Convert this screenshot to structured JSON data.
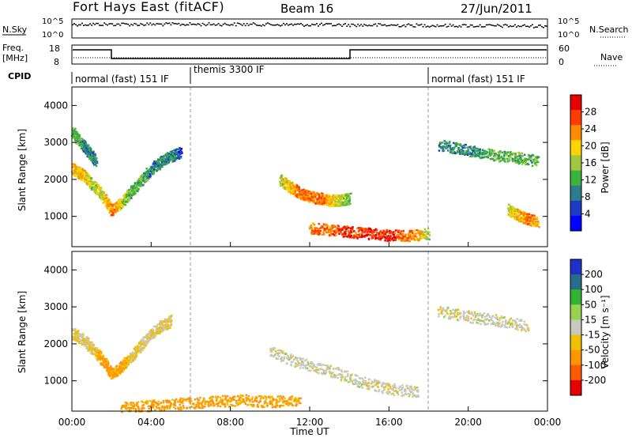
{
  "header": {
    "title": "Fort Hays East (fitACF)",
    "beam": "Beam 16",
    "date": "27/Jun/2011"
  },
  "summary_panels": {
    "nsky_label": "N.Sky",
    "nsearch_label": "N.Search",
    "noise_ticks_top": "10^5",
    "noise_ticks_bottom": "10^0",
    "freq_label_1": "Freq.",
    "freq_label_2": "[MHz]",
    "freq_ticks": [
      "18",
      "8"
    ],
    "nave_ticks": [
      "60",
      "0"
    ],
    "nave_label": "Nave",
    "cpid_label": "CPID",
    "cpid_segments": [
      {
        "label": "normal (fast) 151 IF",
        "start_h": 0,
        "end_h": 6
      },
      {
        "label": "themis 3300 IF",
        "start_h": 6,
        "end_h": 18
      },
      {
        "label": "normal (fast) 151 IF",
        "start_h": 18,
        "end_h": 24
      }
    ]
  },
  "chart_data": [
    {
      "type": "heatmap",
      "panel": "power",
      "ylabel": "Slant Range [km]",
      "xlim": [
        0,
        24
      ],
      "ylim": [
        180,
        4500
      ],
      "yticks": [
        "1000",
        "2000",
        "3000",
        "4000"
      ],
      "colorbar_label": "Power [dB]",
      "colorbar_ticks": [
        "28",
        "24",
        "20",
        "16",
        "12",
        "8",
        "4"
      ],
      "colors": [
        "#0000ff",
        "#1e3cc8",
        "#2d7d8c",
        "#3cb43c",
        "#a0c83c",
        "#ffd200",
        "#ff8c00",
        "#ff3c00",
        "#e60000"
      ],
      "series": [
        {
          "x": [
            0.0,
            0.5,
            1.0,
            1.5,
            2.0,
            2.5,
            3.0,
            3.5,
            4.0,
            4.5,
            5.0,
            5.5
          ],
          "y": [
            2300,
            2150,
            1900,
            1600,
            1200,
            1400,
            1700,
            2000,
            2300,
            2500,
            2650,
            2750
          ],
          "values": [
            20,
            20,
            16,
            16,
            24,
            16,
            12,
            12,
            8,
            8,
            8,
            4
          ]
        },
        {
          "x": [
            0.0,
            0.3,
            0.6,
            0.9,
            1.2
          ],
          "y": [
            3300,
            3100,
            2900,
            2700,
            2500
          ],
          "values": [
            12,
            12,
            8,
            8,
            8
          ]
        },
        {
          "x": [
            10.5,
            11.0,
            11.5,
            12.0,
            12.5,
            13.0,
            13.5,
            14.0
          ],
          "y": [
            2000,
            1800,
            1650,
            1550,
            1500,
            1450,
            1450,
            1500
          ],
          "values": [
            16,
            20,
            24,
            24,
            24,
            20,
            16,
            12
          ]
        },
        {
          "x": [
            12.0,
            13.0,
            14.0,
            15.0,
            16.0,
            17.0,
            18.0
          ],
          "y": [
            700,
            650,
            600,
            550,
            500,
            500,
            550
          ],
          "values": [
            24,
            24,
            28,
            28,
            28,
            24,
            16
          ]
        },
        {
          "x": [
            18.5,
            19.5,
            20.5,
            21.5,
            22.5,
            23.5
          ],
          "y": [
            2950,
            2850,
            2750,
            2650,
            2600,
            2500
          ],
          "values": [
            8,
            8,
            8,
            12,
            12,
            12
          ]
        },
        {
          "x": [
            22.0,
            22.5,
            23.0,
            23.5
          ],
          "y": [
            1200,
            1050,
            950,
            850
          ],
          "values": [
            16,
            20,
            24,
            20
          ]
        }
      ]
    },
    {
      "type": "heatmap",
      "panel": "velocity",
      "ylabel": "Slant Range [km]",
      "xlabel": "Time UT",
      "xlim": [
        0,
        24
      ],
      "ylim": [
        180,
        4500
      ],
      "xticks": [
        "00:00",
        "04:00",
        "08:00",
        "12:00",
        "16:00",
        "20:00",
        "00:00"
      ],
      "yticks": [
        "1000",
        "2000",
        "3000",
        "4000"
      ],
      "colorbar_label": "Velocity [m s⁻¹]",
      "colorbar_ticks": [
        "200",
        "100",
        "50",
        "15",
        "-15",
        "-50",
        "-100",
        "-200"
      ],
      "colors": [
        "#1e32c8",
        "#286e8c",
        "#32b432",
        "#96d250",
        "#c8c8c0",
        "#f0c000",
        "#ff9600",
        "#ff5a00",
        "#e60000"
      ],
      "series": [
        {
          "x": [
            0.0,
            0.5,
            1.0,
            1.5,
            2.0,
            2.5,
            3.0,
            3.5,
            4.0,
            4.5,
            5.0
          ],
          "y": [
            2300,
            2150,
            1900,
            1600,
            1200,
            1400,
            1700,
            2000,
            2300,
            2500,
            2650
          ],
          "values": [
            -15,
            -15,
            -15,
            -50,
            -50,
            -50,
            -15,
            -15,
            -15,
            -15,
            -15
          ]
        },
        {
          "x": [
            2.5,
            4.0,
            5.5,
            7.0,
            8.5,
            10.0,
            11.5
          ],
          "y": [
            300,
            350,
            400,
            450,
            500,
            450,
            500
          ],
          "values": [
            -50,
            -50,
            -50,
            -50,
            -50,
            -50,
            -50
          ]
        },
        {
          "x": [
            10.0,
            11.5,
            13.0,
            14.5,
            16.0,
            17.5
          ],
          "y": [
            1800,
            1500,
            1300,
            1000,
            800,
            700
          ],
          "values": [
            0,
            0,
            0,
            0,
            0,
            0
          ]
        },
        {
          "x": [
            18.5,
            20.0,
            21.5,
            23.0
          ],
          "y": [
            2900,
            2750,
            2650,
            2500
          ],
          "values": [
            0,
            0,
            0,
            0
          ]
        }
      ]
    }
  ]
}
